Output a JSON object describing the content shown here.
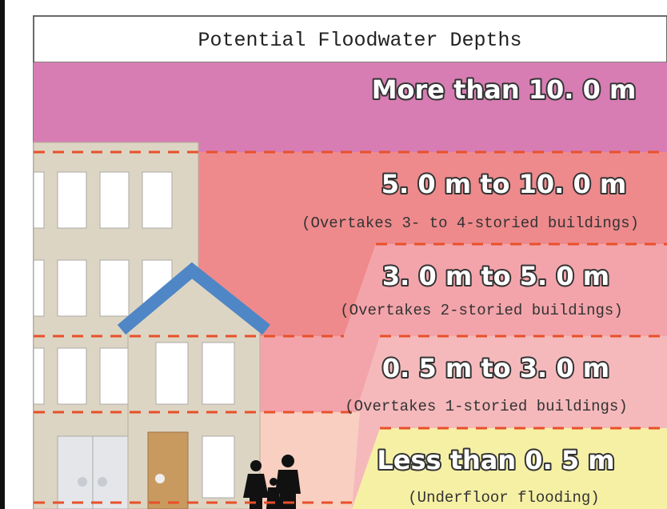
{
  "title": "Potential Floodwater Depths",
  "bands": [
    {
      "label": "More than 10. 0 m"
    },
    {
      "label": "5. 0 m to 10. 0 m",
      "note": "(Overtakes 3- to 4-storied buildings)"
    },
    {
      "label": "3. 0 m to 5. 0 m",
      "note": "(Overtakes 2-storied buildings)"
    },
    {
      "label": "0. 5 m to 3. 0 m",
      "note": "(Overtakes 1-storied buildings)"
    },
    {
      "label": "Less than 0. 5 m",
      "note": "(Underfloor flooding)"
    }
  ]
}
